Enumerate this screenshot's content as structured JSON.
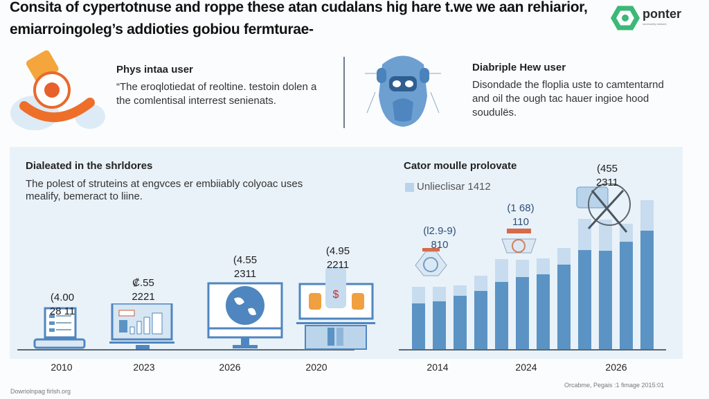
{
  "header": {
    "title_line1": "Consita of cypertotnuse and roppe these atan cudalans hig hare t.we we aan rehiarior,",
    "title_line2": "emiarroingoleg’s addioties gobiou fermturae-"
  },
  "logo": {
    "name": "ponter",
    "tagline": "community network",
    "color": "#3cb878"
  },
  "features": [
    {
      "icon": "orange-device-icon",
      "title": "Phys intaa user",
      "text": [
        "“The eroqlotiedat of reoltine. testoin dolen a",
        "the comlentisal interrest senienats."
      ]
    },
    {
      "icon": "blue-monster-icon",
      "title": "Diabriple Hew user",
      "text": [
        "Disondade the floplia uste to camtentarnd",
        "and oil the ough tac hauer ingioe hood",
        "soudulës."
      ]
    }
  ],
  "left_panel": {
    "title": "Dialeated in the shrldores",
    "text": [
      "The polest of struteins at engvces er embiiably colyoac uses",
      "mealify, bemeract to liine."
    ],
    "items": [
      {
        "year": "2010",
        "value": "(4.00",
        "sub": "28 11",
        "icon": "laptop-icon"
      },
      {
        "year": "2023",
        "value": "₡.55",
        "sub": "2221",
        "icon": "dashboard-laptop-icon"
      },
      {
        "year": "2026",
        "value": "(4.55",
        "sub": "2311",
        "icon": "globe-monitor-icon"
      },
      {
        "year": "2020",
        "value": "(4.95",
        "sub": "2211",
        "icon": "server-monitor-icon"
      }
    ]
  },
  "right_panel": {
    "title": "Cator moulle prolovate",
    "legend": "Unlieclisar 1412",
    "annotations": [
      {
        "value": "(l2.9-9)",
        "sub": "810"
      },
      {
        "value": "(1 68)",
        "sub": "110"
      },
      {
        "value": "(455",
        "sub": "2311"
      }
    ],
    "years": [
      "2014",
      "2024",
      "2026"
    ],
    "colors": {
      "dark": "#5b93c4",
      "light": "#c7dcee"
    }
  },
  "footer": {
    "left": "Dowriolnpag firlsh.org",
    "right": "Orcabme, Pegais :1 fimage 2015:01"
  }
}
